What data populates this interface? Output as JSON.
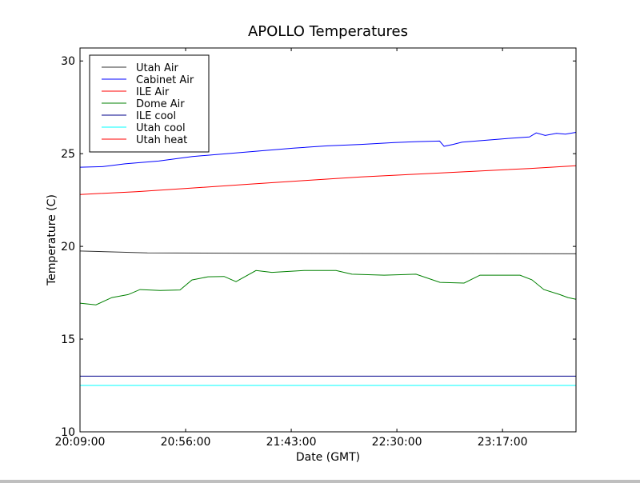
{
  "chart_data": {
    "type": "line",
    "title": "APOLLO Temperatures",
    "xlabel": "Date (GMT)",
    "ylabel": "Temperature (C)",
    "x_unit": "minutes since 20:09:00",
    "xlim": [
      0,
      220.7
    ],
    "ylim": [
      10,
      30.7
    ],
    "xticks": [
      0,
      47,
      94,
      141,
      188
    ],
    "xtick_labels": [
      "20:09:00",
      "20:56:00",
      "21:43:00",
      "22:30:00",
      "23:17:00"
    ],
    "yticks": [
      10,
      15,
      20,
      25,
      30
    ],
    "ytick_labels": [
      "10",
      "15",
      "20",
      "25",
      "30"
    ],
    "legend_position": "top-left",
    "series": [
      {
        "name": "Utah Air",
        "color": "#333333",
        "x": [
          0,
          30,
          100,
          220.7
        ],
        "y": [
          19.75,
          19.65,
          19.62,
          19.6
        ]
      },
      {
        "name": "Cabinet Air",
        "color": "#0000ff",
        "x": [
          0,
          10,
          20,
          35,
          50,
          65,
          80,
          95,
          110,
          125,
          140,
          150,
          160,
          162,
          166,
          170,
          180,
          190,
          200,
          203,
          207,
          212,
          216,
          220.7
        ],
        "y": [
          24.27,
          24.3,
          24.45,
          24.6,
          24.85,
          25.0,
          25.15,
          25.3,
          25.42,
          25.5,
          25.6,
          25.65,
          25.68,
          25.4,
          25.5,
          25.62,
          25.72,
          25.82,
          25.9,
          26.12,
          25.98,
          26.1,
          26.05,
          26.15
        ]
      },
      {
        "name": "ILE Air",
        "color": "#ff0000",
        "x": [
          0,
          25,
          50,
          75,
          100,
          125,
          150,
          175,
          200,
          220.7
        ],
        "y": [
          22.8,
          22.95,
          23.15,
          23.35,
          23.55,
          23.75,
          23.9,
          24.05,
          24.2,
          24.35
        ]
      },
      {
        "name": "Dome Air",
        "color": "#008000",
        "x": [
          0,
          7.1,
          14.2,
          21.4,
          26.7,
          35.6,
          44.5,
          49.8,
          57,
          64.1,
          69.4,
          78.3,
          85.4,
          99.7,
          113.9,
          121,
          135.3,
          149.5,
          160.2,
          170.9,
          178,
          195.8,
          201.1,
          206.4,
          213.5,
          217.1,
          220.7
        ],
        "y": [
          16.94,
          16.85,
          17.24,
          17.4,
          17.67,
          17.62,
          17.65,
          18.19,
          18.36,
          18.38,
          18.1,
          18.7,
          18.6,
          18.7,
          18.7,
          18.5,
          18.45,
          18.5,
          18.06,
          18.02,
          18.45,
          18.45,
          18.2,
          17.67,
          17.4,
          17.24,
          17.15
        ]
      },
      {
        "name": "ILE cool",
        "color": "#00008b",
        "x": [
          0,
          220.7
        ],
        "y": [
          13.0,
          13.0
        ]
      },
      {
        "name": "Utah cool",
        "color": "#00ffff",
        "x": [
          0,
          220.7
        ],
        "y": [
          12.5,
          12.5
        ]
      },
      {
        "name": "Utah heat",
        "color": "#ff0000",
        "x": [],
        "y": []
      }
    ]
  }
}
